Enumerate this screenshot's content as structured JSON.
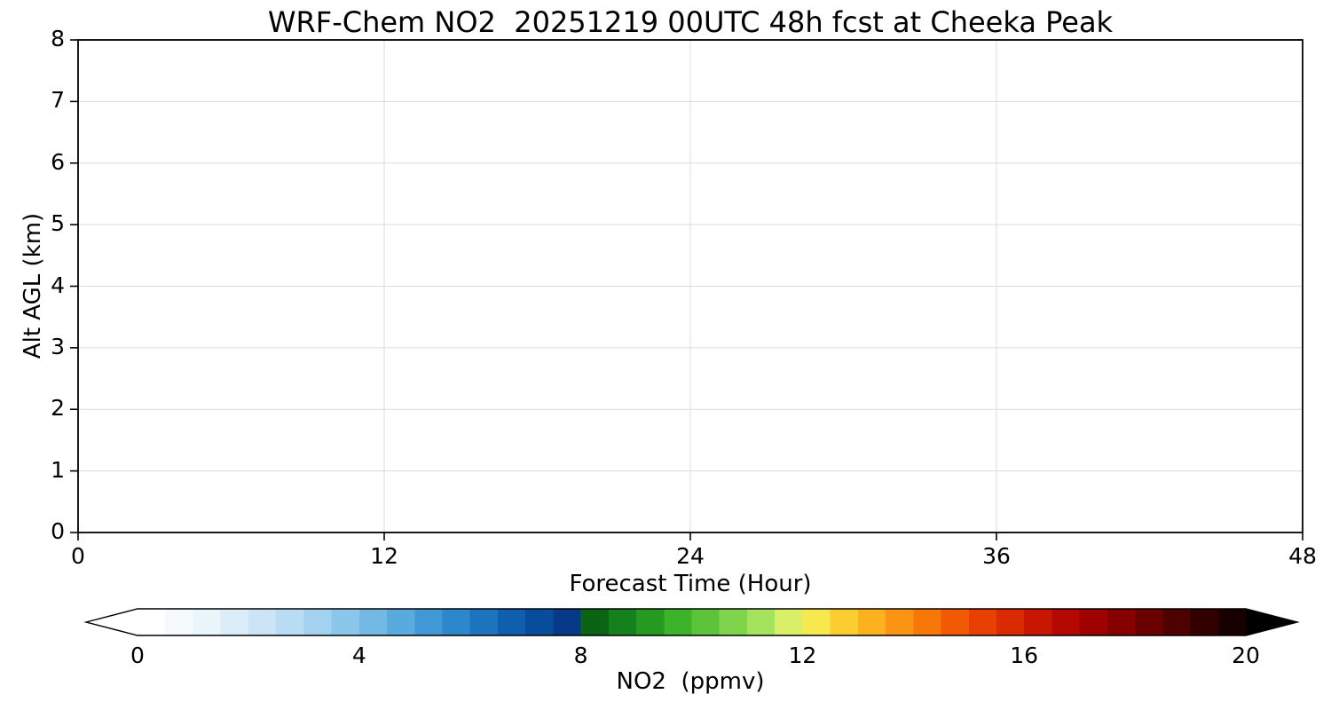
{
  "chart_data": {
    "type": "heatmap",
    "title": "WRF-Chem NO2  20251219 00UTC 48h fcst at Cheeka Peak",
    "xlabel": "Forecast Time (Hour)",
    "ylabel": "Alt AGL (km)",
    "xlim": [
      0,
      48
    ],
    "ylim": [
      0,
      8
    ],
    "x_ticks": [
      0,
      12,
      24,
      36,
      48
    ],
    "y_ticks": [
      0,
      1,
      2,
      3,
      4,
      5,
      6,
      7,
      8
    ],
    "grid": true,
    "grid_color": "#dcdcdc",
    "values": [],
    "colorbar": {
      "label": "NO2  (ppmv)",
      "ticks": [
        0,
        4,
        8,
        12,
        16,
        20
      ],
      "range": [
        0,
        20
      ],
      "extend": "both",
      "orientation": "horizontal",
      "under_color": "#ffffff",
      "over_color": "#000000",
      "colors": [
        "#ffffff",
        "#f5fafd",
        "#e9f4fb",
        "#dbedf9",
        "#cbe5f6",
        "#b8dcf3",
        "#a2d2ef",
        "#8bc6eb",
        "#72b9e5",
        "#58aadf",
        "#4099d6",
        "#2c87cb",
        "#1c73be",
        "#105fae",
        "#084c9c",
        "#063a88",
        "#0a6414",
        "#15801c",
        "#269a20",
        "#3db32a",
        "#5cc43a",
        "#7fd44c",
        "#a5e35e",
        "#d9ef67",
        "#f6e84e",
        "#fccd2f",
        "#fdb11f",
        "#fb9412",
        "#f77708",
        "#f15a02",
        "#e84000",
        "#da2a00",
        "#c91600",
        "#b50800",
        "#9e0100",
        "#860000",
        "#6b0000",
        "#4f0000",
        "#330000",
        "#180000"
      ]
    }
  }
}
